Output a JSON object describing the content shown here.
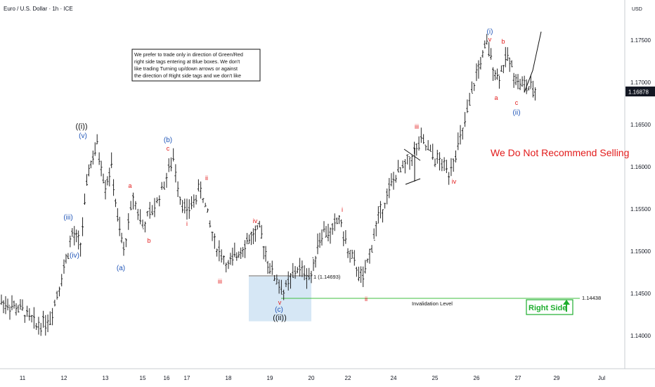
{
  "header": {
    "title": "Euro / U.S. Dollar · 1h · ICE",
    "currency": "USD"
  },
  "note": {
    "lines": [
      "We prefer to trade only in direction of Green/Red",
      "right side tags entering at Blue boxes. We don't",
      "like trading Turning up/down arrows or against",
      "the direction of Right side tags and we don't like"
    ]
  },
  "banner": "We Do Not Recommend Selling",
  "right_side_tag": "Right Side",
  "current_price": "1.16878",
  "invalidation": {
    "label": "Invalidation Level",
    "value": "1.14438"
  },
  "level_1": "1 (1.14693)",
  "colors": {
    "red": "#e21b1b",
    "blue": "#2156b8",
    "black": "#111111",
    "green": "#1fae2e",
    "box": "#cfe3f3",
    "bars": "#222222"
  },
  "chart_data": {
    "type": "ohlc",
    "symbol": "EURUSD",
    "timeframe": "1h",
    "y_ticks": [
      "1.17500",
      "1.17000",
      "1.16500",
      "1.16000",
      "1.15500",
      "1.15000",
      "1.14500",
      "1.14000"
    ],
    "x_ticks": [
      "11",
      "12",
      "13",
      "15",
      "16",
      "17",
      "18",
      "19",
      "20",
      "22",
      "24",
      "25",
      "26",
      "27",
      "29",
      "Jul"
    ],
    "ylim": [
      1.1365,
      1.1803
    ],
    "price_path": [
      [
        "11",
        1.143
      ],
      [
        "11",
        1.1412
      ],
      [
        "11",
        1.142
      ],
      [
        "12",
        1.148
      ],
      [
        "12",
        1.152
      ],
      [
        "12",
        1.1508
      ],
      [
        "12",
        1.1598
      ],
      [
        "12",
        1.1625
      ],
      [
        "13",
        1.1578
      ],
      [
        "13",
        1.16
      ],
      [
        "13",
        1.1537
      ],
      [
        "14",
        1.15
      ],
      [
        "14",
        1.1565
      ],
      [
        "15",
        1.153
      ],
      [
        "15",
        1.1552
      ],
      [
        "16",
        1.1588
      ],
      [
        "16",
        1.161
      ],
      [
        "16",
        1.1565
      ],
      [
        "17",
        1.1545
      ],
      [
        "17",
        1.1575
      ],
      [
        "17",
        1.151
      ],
      [
        "18",
        1.1482
      ],
      [
        "18",
        1.15
      ],
      [
        "18",
        1.1515
      ],
      [
        "18",
        1.1525
      ],
      [
        "19",
        1.148
      ],
      [
        "19",
        1.1452
      ],
      [
        "19",
        1.148
      ],
      [
        "20",
        1.147
      ],
      [
        "20",
        1.151
      ],
      [
        "20",
        1.1525
      ],
      [
        "21",
        1.152
      ],
      [
        "21",
        1.154
      ],
      [
        "22",
        1.15
      ],
      [
        "22",
        1.1465
      ],
      [
        "22",
        1.154
      ],
      [
        "24",
        1.1585
      ],
      [
        "24",
        1.1605
      ],
      [
        "24",
        1.163
      ],
      [
        "25",
        1.161
      ],
      [
        "25",
        1.1595
      ],
      [
        "25",
        1.164
      ],
      [
        "26",
        1.171
      ],
      [
        "26",
        1.1745
      ],
      [
        "26",
        1.1705
      ],
      [
        "26",
        1.173
      ],
      [
        "27",
        1.17
      ],
      [
        "27",
        1.1688
      ]
    ],
    "projection": [
      [
        "27",
        1.1688
      ],
      [
        "29",
        1.176
      ]
    ],
    "box_zone": {
      "top": 1.147,
      "bottom": 1.1417,
      "x_from": "18",
      "x_to": "20"
    },
    "levels": [
      {
        "label": "Invalidation Level",
        "value": 1.14438
      },
      {
        "label": "1 (1.14693)",
        "value": 1.14693
      }
    ],
    "annotations": [
      {
        "text": "((i))",
        "x": "12",
        "y": 1.1635,
        "color": "black"
      },
      {
        "text": "(v)",
        "x": "12",
        "y": 1.1625,
        "color": "blue"
      },
      {
        "text": "(iii)",
        "x": "12",
        "y": 1.1532,
        "color": "blue"
      },
      {
        "text": "(iv)",
        "x": "12",
        "y": 1.1498,
        "color": "blue"
      },
      {
        "text": "a",
        "x": "14",
        "y": 1.1573,
        "color": "red"
      },
      {
        "text": "(a)",
        "x": "14",
        "y": 1.1484,
        "color": "blue"
      },
      {
        "text": "b",
        "x": "15",
        "y": 1.1513,
        "color": "red"
      },
      {
        "text": "(b)",
        "x": "16",
        "y": 1.163,
        "color": "blue"
      },
      {
        "text": "c",
        "x": "16",
        "y": 1.1618,
        "color": "red"
      },
      {
        "text": "i",
        "x": "16",
        "y": 1.153,
        "color": "red"
      },
      {
        "text": "ii",
        "x": "17",
        "y": 1.159,
        "color": "red"
      },
      {
        "text": "iii",
        "x": "18",
        "y": 1.1463,
        "color": "red"
      },
      {
        "text": "iv",
        "x": "18",
        "y": 1.1532,
        "color": "red"
      },
      {
        "text": "v",
        "x": "19",
        "y": 1.1442,
        "color": "red"
      },
      {
        "text": "(c)",
        "x": "19",
        "y": 1.1432,
        "color": "blue"
      },
      {
        "text": "((ii))",
        "x": "19",
        "y": 1.142,
        "color": "black"
      },
      {
        "text": "i",
        "x": "21",
        "y": 1.1552,
        "color": "red"
      },
      {
        "text": "ii",
        "x": "22",
        "y": 1.1445,
        "color": "red"
      },
      {
        "text": "iii",
        "x": "24",
        "y": 1.1642,
        "color": "red"
      },
      {
        "text": "iv",
        "x": "25",
        "y": 1.1578,
        "color": "red"
      },
      {
        "text": "(i)",
        "x": "26",
        "y": 1.1772,
        "color": "blue"
      },
      {
        "text": "v",
        "x": "26",
        "y": 1.176,
        "color": "red"
      },
      {
        "text": "b",
        "x": "26",
        "y": 1.1752,
        "color": "red"
      },
      {
        "text": "a",
        "x": "26",
        "y": 1.1685,
        "color": "red"
      },
      {
        "text": "c",
        "x": "26",
        "y": 1.1675,
        "color": "red"
      },
      {
        "text": "(ii)",
        "x": "27",
        "y": 1.1662,
        "color": "blue"
      }
    ]
  }
}
